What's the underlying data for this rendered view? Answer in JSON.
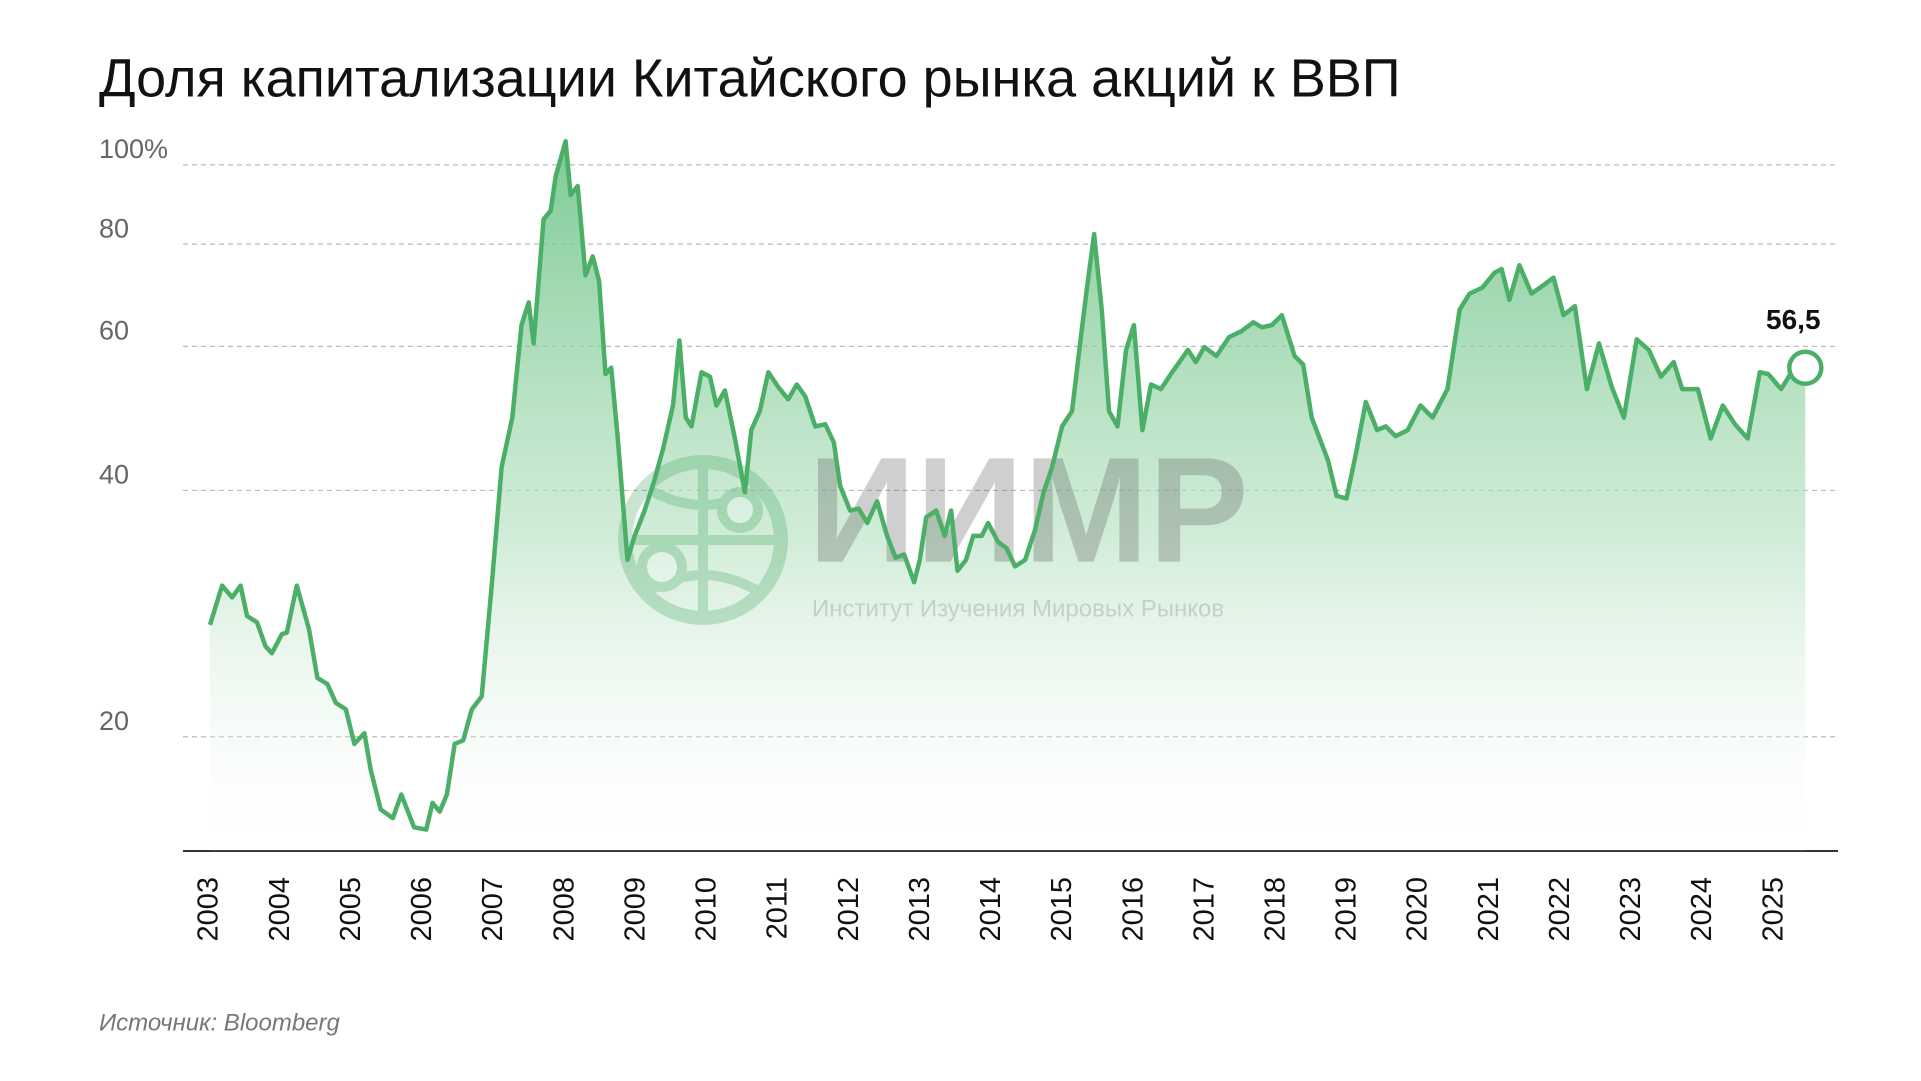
{
  "chart_data": {
    "type": "line",
    "title": "Доля капитализации Китайского рынка акций к ВВП",
    "source": "Источник: Bloomberg",
    "watermark": {
      "logo": "ИИМР",
      "text": "Институт Изучения Мировых Рынков"
    },
    "annotation": "56,5",
    "color": "#4caf68",
    "log_y": true,
    "grid": true,
    "x": [
      2003.0,
      2003.17,
      2003.31,
      2003.43,
      2003.52,
      2003.66,
      2003.78,
      2003.87,
      2004.01,
      2004.08,
      2004.22,
      2004.39,
      2004.51,
      2004.65,
      2004.77,
      2004.91,
      2005.03,
      2005.17,
      2005.26,
      2005.4,
      2005.57,
      2005.69,
      2005.87,
      2006.04,
      2006.13,
      2006.23,
      2006.33,
      2006.44,
      2006.56,
      2006.68,
      2006.82,
      2006.96,
      2007.1,
      2007.25,
      2007.38,
      2007.48,
      2007.55,
      2007.69,
      2007.79,
      2007.86,
      2008.0,
      2008.07,
      2008.17,
      2008.28,
      2008.38,
      2008.47,
      2008.56,
      2008.64,
      2008.73,
      2008.87,
      2008.97,
      2009.11,
      2009.25,
      2009.37,
      2009.51,
      2009.6,
      2009.69,
      2009.77,
      2009.91,
      2010.03,
      2010.12,
      2010.24,
      2010.38,
      2010.52,
      2010.61,
      2010.73,
      2010.85,
      2010.99,
      2011.13,
      2011.25,
      2011.37,
      2011.51,
      2011.65,
      2011.77,
      2011.86,
      2012.0,
      2012.12,
      2012.24,
      2012.38,
      2012.52,
      2012.64,
      2012.76,
      2012.9,
      2012.98,
      2013.07,
      2013.21,
      2013.33,
      2013.42,
      2013.51,
      2013.63,
      2013.73,
      2013.85,
      2013.94,
      2014.08,
      2014.2,
      2014.32,
      2014.46,
      2014.6,
      2014.72,
      2014.84,
      2014.98,
      2015.12,
      2015.24,
      2015.33,
      2015.43,
      2015.54,
      2015.64,
      2015.76,
      2015.88,
      2015.99,
      2016.11,
      2016.23,
      2016.37,
      2016.51,
      2016.63,
      2016.75,
      2016.86,
      2016.98,
      2017.15,
      2017.33,
      2017.5,
      2017.67,
      2017.79,
      2017.93,
      2018.07,
      2018.25,
      2018.37,
      2018.49,
      2018.72,
      2018.84,
      2018.98,
      2019.11,
      2019.25,
      2019.41,
      2019.53,
      2019.67,
      2019.84,
      2020.02,
      2020.19,
      2020.4,
      2020.57,
      2020.71,
      2020.89,
      2021.06,
      2021.16,
      2021.27,
      2021.41,
      2021.58,
      2021.75,
      2021.89,
      2022.03,
      2022.19,
      2022.36,
      2022.53,
      2022.71,
      2022.88,
      2023.06,
      2023.23,
      2023.4,
      2023.58,
      2023.7,
      2023.92,
      2024.1,
      2024.27,
      2024.44,
      2024.62,
      2024.79,
      2024.91,
      2025.09,
      2025.26,
      2025.43
    ],
    "values": [
      27.4,
      30.6,
      29.6,
      30.6,
      28.1,
      27.6,
      25.8,
      25.3,
      26.7,
      26.8,
      30.6,
      27.1,
      23.6,
      23.2,
      22.0,
      21.6,
      19.6,
      20.2,
      18.2,
      16.3,
      15.9,
      17.0,
      15.5,
      15.4,
      16.6,
      16.2,
      17.0,
      19.6,
      19.8,
      21.6,
      22.4,
      30.6,
      42.7,
      49.1,
      63.7,
      67.9,
      60.5,
      85.8,
      87.9,
      96.9,
      106.9,
      91.9,
      94.2,
      73.3,
      77.3,
      72.1,
      55.5,
      56.5,
      46.6,
      32.9,
      35.2,
      37.8,
      41.2,
      45.0,
      50.8,
      61.0,
      49.1,
      47.9,
      55.8,
      55.1,
      50.8,
      53.0,
      46.3,
      39.8,
      47.4,
      50.0,
      55.8,
      53.5,
      51.7,
      53.9,
      52.1,
      47.9,
      48.2,
      45.8,
      40.5,
      37.8,
      38.0,
      36.5,
      38.8,
      35.2,
      33.1,
      33.4,
      30.9,
      32.9,
      37.1,
      37.8,
      35.2,
      37.8,
      31.9,
      32.9,
      35.2,
      35.2,
      36.5,
      34.6,
      34.0,
      32.3,
      32.9,
      35.8,
      39.8,
      42.7,
      47.9,
      50.0,
      61.2,
      70.8,
      82.3,
      66.2,
      50.0,
      47.9,
      59.4,
      63.7,
      47.4,
      53.9,
      53.2,
      55.5,
      57.4,
      59.4,
      57.4,
      59.9,
      58.4,
      61.6,
      62.6,
      64.2,
      63.3,
      63.7,
      65.5,
      58.4,
      57.0,
      49.1,
      43.5,
      39.4,
      39.1,
      44.3,
      51.3,
      47.4,
      47.9,
      46.6,
      47.4,
      50.8,
      49.1,
      53.2,
      66.5,
      69.6,
      70.8,
      73.8,
      74.6,
      68.4,
      75.4,
      69.6,
      71.3,
      72.8,
      65.5,
      67.2,
      53.2,
      60.5,
      53.5,
      49.1,
      61.2,
      59.4,
      55.1,
      57.4,
      53.2,
      53.2,
      46.3,
      50.8,
      48.2,
      46.3,
      55.8,
      55.5,
      53.2,
      56.2,
      56.5
    ],
    "xlim": [
      2002.62,
      2025.89
    ],
    "xticks": [
      2003,
      2004,
      2005,
      2006,
      2007,
      2008,
      2009,
      2010,
      2011,
      2012,
      2013,
      2014,
      2015,
      2016,
      2017,
      2018,
      2019,
      2020,
      2021,
      2022,
      2023,
      2024,
      2025
    ],
    "ylim": [
      14.5,
      110
    ],
    "yticks": [
      20,
      40,
      60,
      80,
      {
        "value": 100,
        "label": "100%"
      }
    ]
  }
}
